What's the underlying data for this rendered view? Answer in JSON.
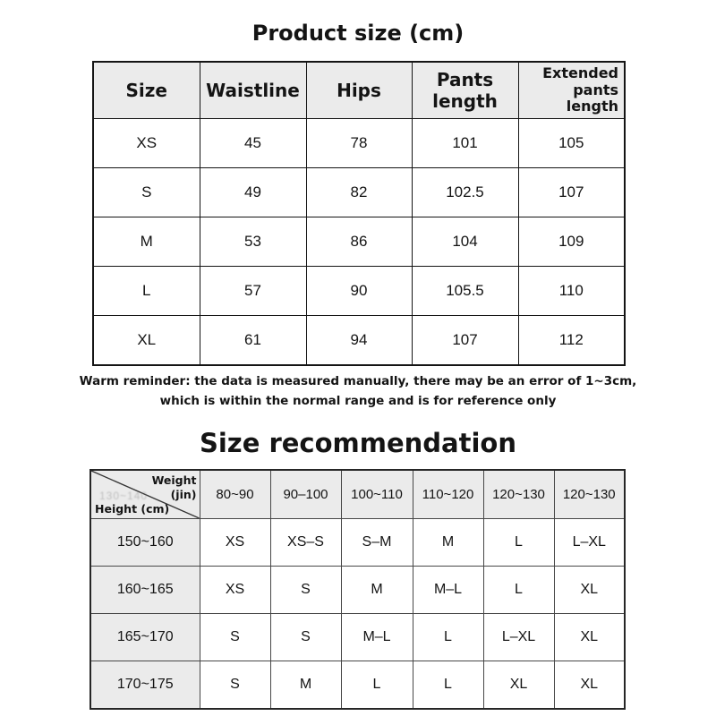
{
  "colors": {
    "page_background": "#ffffff",
    "header_cell_background": "#ebebeb",
    "table1_border": "#141414",
    "table2_border": "#474747",
    "text": "#141414"
  },
  "product_size_table": {
    "title": "Product size (cm)",
    "columns": [
      "Size",
      "Waistline",
      "Hips",
      "Pants length",
      "Extended pants length"
    ],
    "rows": [
      {
        "size": "XS",
        "values": [
          "45",
          "78",
          "101",
          "105"
        ]
      },
      {
        "size": "S",
        "values": [
          "49",
          "82",
          "102.5",
          "107"
        ]
      },
      {
        "size": "M",
        "values": [
          "53",
          "86",
          "104",
          "109"
        ]
      },
      {
        "size": "L",
        "values": [
          "57",
          "90",
          "105.5",
          "110"
        ]
      },
      {
        "size": "XL",
        "values": [
          "61",
          "94",
          "107",
          "112"
        ]
      }
    ]
  },
  "reminder": {
    "line1": "Warm reminder: the data is measured manually, there may be an error of 1~3cm,",
    "line2": "which is within the normal range and is for reference only"
  },
  "size_recommendation_table": {
    "title": "Size recommendation",
    "corner": {
      "weight_label": "Weight (jin)",
      "height_label": "Height (cm)",
      "ghost_text": "130~140"
    },
    "weight_columns": [
      "80~90",
      "90–100",
      "100~110",
      "110~120",
      "120~130",
      "120~130"
    ],
    "rows": [
      {
        "height": "150~160",
        "sizes": [
          "XS",
          "XS–S",
          "S–M",
          "M",
          "L",
          "L–XL"
        ]
      },
      {
        "height": "160~165",
        "sizes": [
          "XS",
          "S",
          "M",
          "M–L",
          "L",
          "XL"
        ]
      },
      {
        "height": "165~170",
        "sizes": [
          "S",
          "S",
          "M–L",
          "L",
          "L–XL",
          "XL"
        ]
      },
      {
        "height": "170~175",
        "sizes": [
          "S",
          "M",
          "L",
          "L",
          "XL",
          "XL"
        ]
      }
    ]
  }
}
